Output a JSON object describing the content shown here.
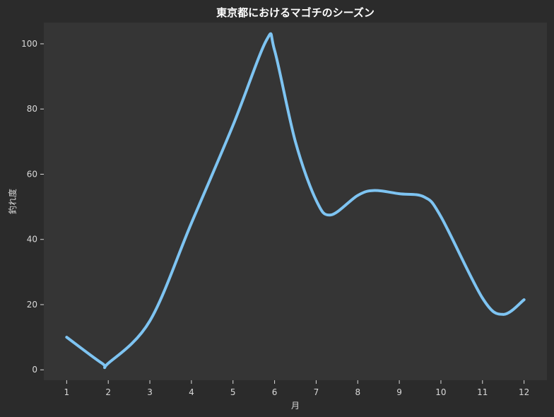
{
  "chart_data": {
    "type": "line",
    "title": "東京都におけるマゴチのシーズン",
    "xlabel": "月",
    "ylabel": "釣れ度",
    "x": [
      1,
      1.85,
      2,
      3,
      4,
      5,
      5.8,
      6,
      6.5,
      7,
      7.35,
      8,
      8.4,
      9,
      9.6,
      10,
      11,
      11.5,
      12
    ],
    "y": [
      10,
      2,
      2,
      15,
      45,
      75,
      101,
      98,
      70,
      52,
      47.5,
      53.5,
      55,
      54,
      53,
      47,
      22,
      17,
      21.5
    ],
    "series": [
      {
        "values": [
          10,
          2,
          2,
          15,
          45,
          75,
          101,
          98,
          70,
          52,
          47.5,
          53.5,
          55,
          54,
          53,
          47,
          22,
          17,
          21.5
        ]
      }
    ],
    "x_ticks": [
      "1",
      "2",
      "3",
      "4",
      "5",
      "6",
      "7",
      "8",
      "9",
      "10",
      "11",
      "12"
    ],
    "y_ticks": [
      "0",
      "20",
      "40",
      "60",
      "80",
      "100"
    ],
    "xlim": [
      0.45,
      12.55
    ],
    "ylim": [
      -3.2,
      106.5
    ],
    "grid": false,
    "legend": "none",
    "colors": {
      "line": "#7ec4f2",
      "plot_bg": "#353535",
      "figure_bg": "#2b2b2b",
      "text": "#d9d9d9"
    }
  }
}
